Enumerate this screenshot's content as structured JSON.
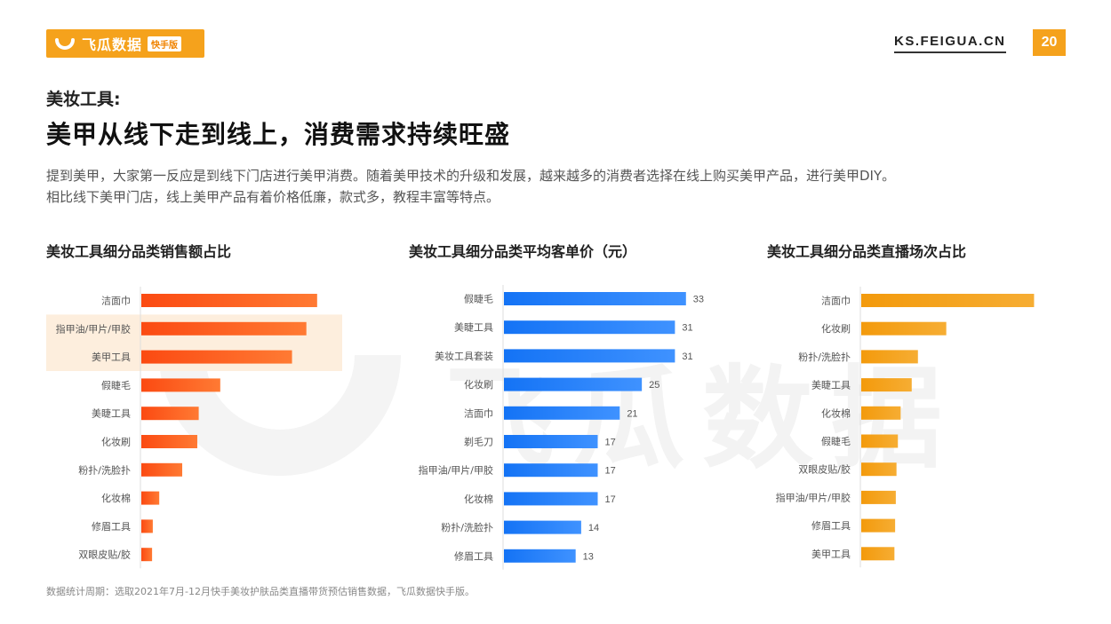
{
  "header": {
    "logo_text": "飞瓜数据",
    "logo_badge": "快手版",
    "site_url": "KS.FEIGUA.CN",
    "page_number": "20",
    "brand_color": "#f5a21c"
  },
  "section_label": "美妆工具:",
  "page_title": "美甲从线下走到线上，消费需求持续旺盛",
  "intro_lines": [
    "提到美甲，大家第一反应是到线下门店进行美甲消费。随着美甲技术的升级和发展，越来越多的消费者选择在线上购买美甲产品，进行美甲DIY。",
    "相比线下美甲门店，线上美甲产品有着价格低廉，款式多，教程丰富等特点。"
  ],
  "watermark_text": "飞瓜数据",
  "footnote": "数据统计周期：选取2021年7月-12月快手美妆护肤品类直播带货预估销售数据，飞瓜数据快手版。",
  "chart_data": [
    {
      "type": "bar",
      "orientation": "horizontal",
      "title": "美妆工具细分品类销售额占比",
      "color": "#fb4a12",
      "color_light": "#ff7a33",
      "highlight_color": "#fdeedd",
      "highlighted_categories": [
        "指甲油/甲片/甲胶",
        "美甲工具"
      ],
      "categories": [
        "洁面巾",
        "指甲油/甲片/甲胶",
        "美甲工具",
        "假睫毛",
        "美睫工具",
        "化妆刷",
        "粉扑/洗脸扑",
        "化妆棉",
        "修眉工具",
        "双眼皮贴/胶"
      ],
      "values": [
        24.5,
        23.0,
        21.0,
        11.0,
        8.0,
        7.8,
        5.7,
        2.5,
        1.6,
        1.5
      ],
      "show_values": false,
      "xlim": [
        0,
        27
      ]
    },
    {
      "type": "bar",
      "orientation": "horizontal",
      "title": "美妆工具细分品类平均客单价（元）",
      "color": "#1473f5",
      "color_light": "#3f92ff",
      "highlighted_categories": [],
      "categories": [
        "假睫毛",
        "美睫工具",
        "美妆工具套装",
        "化妆刷",
        "洁面巾",
        "剃毛刀",
        "指甲油/甲片/甲胶",
        "化妆棉",
        "粉扑/洗脸扑",
        "修眉工具"
      ],
      "values": [
        33,
        31,
        31,
        25,
        21,
        17,
        17,
        17,
        14,
        13
      ],
      "show_values": true,
      "xlim": [
        0,
        34
      ]
    },
    {
      "type": "bar",
      "orientation": "horizontal",
      "title": "美妆工具细分品类直播场次占比",
      "color": "#f39a0c",
      "color_light": "#f6ad33",
      "highlighted_categories": [],
      "categories": [
        "洁面巾",
        "化妆刷",
        "粉扑/洗脸扑",
        "美睫工具",
        "化妆棉",
        "假睫毛",
        "双眼皮贴/胶",
        "指甲油/甲片/甲胶",
        "修眉工具",
        "美甲工具"
      ],
      "values": [
        25.0,
        12.3,
        8.2,
        7.3,
        5.7,
        5.3,
        5.1,
        5.0,
        4.9,
        4.8
      ],
      "show_values": false,
      "xlim": [
        0,
        27
      ]
    }
  ]
}
